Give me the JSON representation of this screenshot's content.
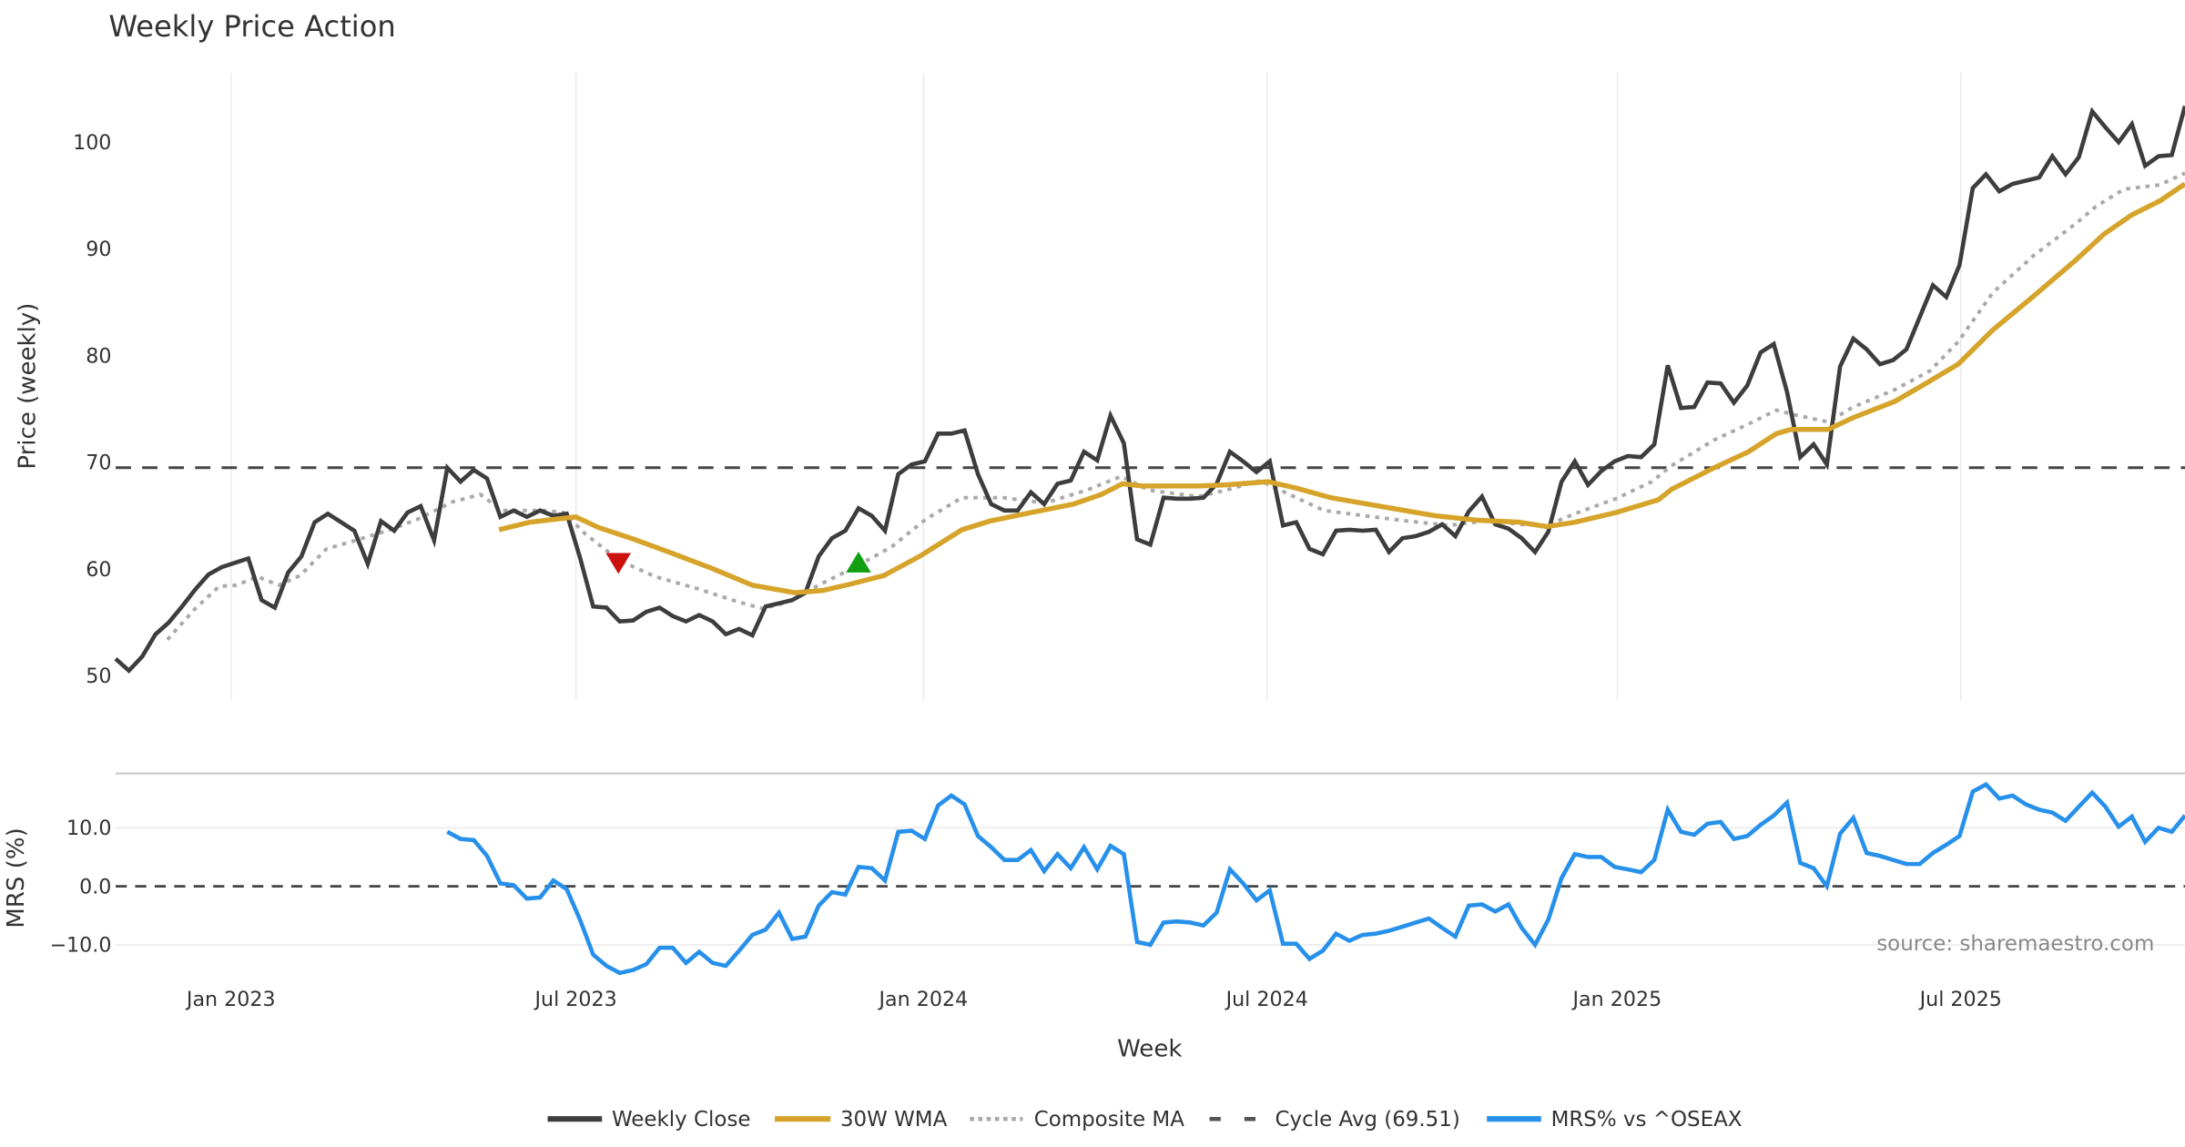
{
  "chart_data": [
    {
      "type": "line",
      "title": "Weekly Price Action",
      "xlabel": "Week",
      "ylabel": "Price (weekly)",
      "ylim": [
        48.5,
        106.5
      ],
      "yticks": [
        50,
        60,
        70,
        80,
        90,
        100
      ],
      "xlim": [
        0,
        156
      ],
      "x_unit": "week index",
      "xticks": [
        {
          "label": "Jan 2023",
          "week": 8.7
        },
        {
          "label": "Jul 2023",
          "week": 34.7
        },
        {
          "label": "Jan 2024",
          "week": 60.9
        },
        {
          "label": "Jul 2024",
          "week": 86.8
        },
        {
          "label": "Jan 2025",
          "week": 113.2
        },
        {
          "label": "Jul 2025",
          "week": 139.1
        }
      ],
      "grid": "vertical",
      "series": [
        {
          "name": "Weekly Close",
          "color": "#3d3d3d",
          "start_week": 0,
          "values": [
            51.6,
            50.5,
            51.8,
            53.9,
            55.0,
            56.5,
            58.1,
            59.5,
            60.2,
            60.6,
            61.0,
            57.1,
            56.4,
            59.7,
            61.2,
            64.4,
            65.2,
            64.4,
            63.6,
            60.5,
            64.5,
            63.6,
            65.3,
            65.9,
            62.7,
            69.5,
            68.2,
            69.3,
            68.5,
            64.9,
            65.5,
            64.9,
            65.5,
            65.0,
            65.2,
            61.1,
            56.5,
            56.4,
            55.1,
            55.2,
            56.0,
            56.4,
            55.6,
            55.1,
            55.7,
            55.1,
            53.9,
            54.4,
            53.8,
            56.5,
            56.8,
            57.1,
            57.8,
            61.2,
            62.9,
            63.6,
            65.7,
            65.0,
            63.6,
            68.9,
            69.8,
            70.1,
            72.7,
            72.7,
            73.0,
            68.9,
            66.1,
            65.5,
            65.5,
            67.2,
            66.1,
            68.0,
            68.3,
            71.0,
            70.2,
            74.4,
            71.8,
            62.8,
            62.3,
            66.7,
            66.6,
            66.6,
            66.7,
            68.0,
            71.0,
            70.1,
            69.1,
            70.1,
            64.1,
            64.4,
            61.9,
            61.4,
            63.6,
            63.7,
            63.6,
            63.7,
            61.6,
            62.9,
            63.1,
            63.5,
            64.2,
            63.1,
            65.4,
            66.8,
            64.2,
            63.8,
            62.9,
            61.6,
            63.5,
            68.2,
            70.1,
            67.9,
            69.2,
            70.1,
            70.6,
            70.5,
            71.7,
            79.1,
            75.1,
            75.2,
            77.5,
            77.4,
            75.6,
            77.2,
            80.3,
            81.1,
            76.6,
            70.5,
            71.7,
            69.8,
            79.0,
            81.6,
            80.6,
            79.2,
            79.6,
            80.6,
            83.6,
            86.6,
            85.5,
            88.5,
            95.7,
            97.0,
            95.4,
            96.1,
            96.4,
            96.7,
            98.7,
            97.0,
            98.6,
            102.9,
            101.4,
            100.0,
            101.7,
            97.8,
            98.7,
            98.8,
            103.4
          ]
        },
        {
          "name": "30W WMA",
          "color": "#d6a42b",
          "points": [
            [
              28.9,
              63.7
            ],
            [
              31.2,
              64.4
            ],
            [
              33.3,
              64.7
            ],
            [
              34.7,
              64.9
            ],
            [
              36.4,
              63.9
            ],
            [
              39.1,
              62.8
            ],
            [
              41.7,
              61.6
            ],
            [
              44.9,
              60.1
            ],
            [
              48.0,
              58.5
            ],
            [
              51.2,
              57.8
            ],
            [
              53.3,
              58.0
            ],
            [
              55.4,
              58.6
            ],
            [
              57.9,
              59.4
            ],
            [
              60.6,
              61.2
            ],
            [
              63.8,
              63.7
            ],
            [
              65.9,
              64.5
            ],
            [
              69.0,
              65.3
            ],
            [
              72.2,
              66.1
            ],
            [
              74.3,
              67.0
            ],
            [
              75.9,
              68.0
            ],
            [
              77.4,
              67.8
            ],
            [
              81.6,
              67.8
            ],
            [
              83.7,
              67.9
            ],
            [
              86.9,
              68.2
            ],
            [
              89.0,
              67.6
            ],
            [
              91.6,
              66.7
            ],
            [
              95.3,
              65.9
            ],
            [
              99.5,
              65.0
            ],
            [
              102.6,
              64.6
            ],
            [
              105.8,
              64.4
            ],
            [
              107.9,
              64.0
            ],
            [
              110.0,
              64.4
            ],
            [
              113.1,
              65.3
            ],
            [
              116.3,
              66.5
            ],
            [
              117.3,
              67.5
            ],
            [
              120.5,
              69.5
            ],
            [
              123.1,
              71.0
            ],
            [
              125.2,
              72.7
            ],
            [
              126.3,
              73.1
            ],
            [
              129.1,
              73.1
            ],
            [
              131.0,
              74.2
            ],
            [
              134.1,
              75.7
            ],
            [
              136.2,
              77.2
            ],
            [
              138.9,
              79.2
            ],
            [
              141.5,
              82.4
            ],
            [
              144.6,
              85.6
            ],
            [
              147.8,
              89.0
            ],
            [
              149.9,
              91.4
            ],
            [
              152.0,
              93.2
            ],
            [
              154.1,
              94.5
            ],
            [
              156,
              96.1
            ]
          ]
        },
        {
          "name": "Composite MA",
          "color": "#aaaaaa",
          "points": [
            [
              3.9,
              53.4
            ],
            [
              6.0,
              56.3
            ],
            [
              7.8,
              58.4
            ],
            [
              9.1,
              58.5
            ],
            [
              10.7,
              59.3
            ],
            [
              12.3,
              58.5
            ],
            [
              13.9,
              59.4
            ],
            [
              15.9,
              61.9
            ],
            [
              18.1,
              62.7
            ],
            [
              20.7,
              63.7
            ],
            [
              22.8,
              64.7
            ],
            [
              25.4,
              66.3
            ],
            [
              27.5,
              67.0
            ],
            [
              29.1,
              65.5
            ],
            [
              32.2,
              65.5
            ],
            [
              33.8,
              65.3
            ],
            [
              35.4,
              63.3
            ],
            [
              38.0,
              60.8
            ],
            [
              40.7,
              59.3
            ],
            [
              43.8,
              58.2
            ],
            [
              47.0,
              56.9
            ],
            [
              48.8,
              56.3
            ],
            [
              50.6,
              56.9
            ],
            [
              53.3,
              58.7
            ],
            [
              55.9,
              60.3
            ],
            [
              58.5,
              62.1
            ],
            [
              61.1,
              64.7
            ],
            [
              63.8,
              66.7
            ],
            [
              66.9,
              66.7
            ],
            [
              70.1,
              66.2
            ],
            [
              73.2,
              67.4
            ],
            [
              75.8,
              68.7
            ],
            [
              77.9,
              67.4
            ],
            [
              81.6,
              66.8
            ],
            [
              83.7,
              67.4
            ],
            [
              86.3,
              68.3
            ],
            [
              89.0,
              66.7
            ],
            [
              91.1,
              65.5
            ],
            [
              94.2,
              65.0
            ],
            [
              97.4,
              64.5
            ],
            [
              100.5,
              64.1
            ],
            [
              103.7,
              64.6
            ],
            [
              105.8,
              64.2
            ],
            [
              107.9,
              64.1
            ],
            [
              110.0,
              65.2
            ],
            [
              113.1,
              66.6
            ],
            [
              115.8,
              68.2
            ],
            [
              117.3,
              69.7
            ],
            [
              120.5,
              72.1
            ],
            [
              123.1,
              73.6
            ],
            [
              125.2,
              74.9
            ],
            [
              126.8,
              74.4
            ],
            [
              129.1,
              73.8
            ],
            [
              131.0,
              75.2
            ],
            [
              134.1,
              76.8
            ],
            [
              136.8,
              78.6
            ],
            [
              138.9,
              81.3
            ],
            [
              141.5,
              85.9
            ],
            [
              144.6,
              89.4
            ],
            [
              147.8,
              92.4
            ],
            [
              149.3,
              94.0
            ],
            [
              151.4,
              95.6
            ],
            [
              154.1,
              96.0
            ],
            [
              156,
              97.1
            ]
          ]
        },
        {
          "name": "Cycle Avg (69.51)",
          "color": "#444444",
          "constant": 69.51
        }
      ],
      "markers": [
        {
          "type": "sell",
          "shape": "triangle-down",
          "color": "#cc1111",
          "week": 37.9,
          "value": 60.6
        },
        {
          "type": "buy",
          "shape": "triangle-up",
          "color": "#12a012",
          "week": 56.0,
          "value": 60.6
        }
      ]
    },
    {
      "type": "line",
      "ylabel": "MRS (%)",
      "ylim": [
        -20,
        19.5
      ],
      "yticks": [
        {
          "value": 10,
          "label": "10.0"
        },
        {
          "value": 0,
          "label": "0.0"
        },
        {
          "value": -10,
          "label": "−10.0"
        }
      ],
      "reference_line": 0,
      "series": [
        {
          "name": "MRS% vs ^OSEAX",
          "color": "#2790ea",
          "end_week": 156,
          "values": [
            9.3,
            8.1,
            7.9,
            5.2,
            0.5,
            0.2,
            -2.1,
            -1.9,
            1.0,
            -0.5,
            -5.7,
            -11.7,
            -13.6,
            -14.8,
            -14.3,
            -13.3,
            -10.5,
            -10.5,
            -13.1,
            -11.2,
            -13.1,
            -13.6,
            -11.0,
            -8.3,
            -7.4,
            -4.5,
            -9.0,
            -8.6,
            -3.3,
            -1.0,
            -1.4,
            3.3,
            3.1,
            1.0,
            9.3,
            9.5,
            8.1,
            13.8,
            15.5,
            14.0,
            8.6,
            6.7,
            4.5,
            4.5,
            6.2,
            2.6,
            5.5,
            3.1,
            6.7,
            2.9,
            6.9,
            5.5,
            -9.5,
            -10.0,
            -6.2,
            -6.0,
            -6.2,
            -6.7,
            -4.5,
            2.9,
            0.5,
            -2.4,
            -0.7,
            -9.8,
            -9.8,
            -12.4,
            -11.0,
            -8.1,
            -9.3,
            -8.3,
            -8.1,
            -7.6,
            -6.9,
            -6.2,
            -5.5,
            -7.1,
            -8.6,
            -3.3,
            -3.1,
            -4.3,
            -3.1,
            -7.1,
            -10.0,
            -5.7,
            1.4,
            5.5,
            5.0,
            5.0,
            3.3,
            2.9,
            2.4,
            4.5,
            13.1,
            9.3,
            8.8,
            10.7,
            11.0,
            8.1,
            8.6,
            10.5,
            12.1,
            14.3,
            4.0,
            3.1,
            0.0,
            9.0,
            11.7,
            5.7,
            5.2,
            4.5,
            3.8,
            3.8,
            5.7,
            7.1,
            8.6,
            16.2,
            17.4,
            15.0,
            15.5,
            14.0,
            13.1,
            12.6,
            11.2,
            13.6,
            16.0,
            13.6,
            10.2,
            11.9,
            7.6,
            10.0,
            9.3,
            12.1
          ]
        }
      ],
      "annotation": "source: sharemaestro.com"
    }
  ],
  "legend": {
    "placement": "bottom-center",
    "items": [
      {
        "label": "Weekly Close",
        "style": "solid",
        "color": "#3d3d3d"
      },
      {
        "label": "30W WMA",
        "style": "solid",
        "color": "#d6a42b"
      },
      {
        "label": "Composite MA",
        "style": "dotted",
        "color": "#aaaaaa"
      },
      {
        "label": "Cycle Avg (69.51)",
        "style": "dashed",
        "color": "#555555"
      },
      {
        "label": "MRS% vs ^OSEAX",
        "style": "solid",
        "color": "#2790ea"
      }
    ]
  }
}
